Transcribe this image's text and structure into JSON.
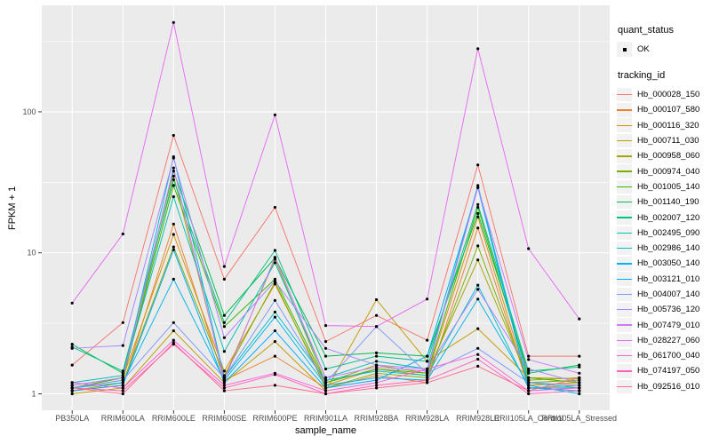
{
  "window": {
    "background": "#FFFFFF"
  },
  "legend": {
    "quant_status": {
      "title": "quant_status",
      "items": [
        {
          "label": "OK",
          "marker": "black-point"
        }
      ]
    },
    "tracking_id": {
      "title": "tracking_id"
    }
  },
  "chart_data": {
    "type": "line",
    "title": "",
    "xlabel": "sample_name",
    "ylabel": "FPKM + 1",
    "y_scale": "log10",
    "ylim": [
      1,
      450
    ],
    "grid": true,
    "legend_position": "right",
    "panel_background": "#EBEBEB",
    "gridline_color": "#FFFFFF",
    "axis_text_color": "#4D4D4D",
    "legend_key_background": "#F2F2F2",
    "marker": {
      "shape": "point",
      "color": "#000000"
    },
    "categories": [
      "PB350LA",
      "RRIM600LA",
      "RRIM600LE",
      "RRIM600SE",
      "RRIM600PE",
      "RRIM901LA",
      "RRIM928BA",
      "RRIM928LA",
      "RRIM928LE",
      "RRII105LA_Control",
      "RRII105LA_Stressed"
    ],
    "y_ticks": [
      {
        "label": "1",
        "value": 1
      },
      {
        "label": "10",
        "value": 10
      },
      {
        "label": "100",
        "value": 100
      }
    ],
    "y_minor_ticks": [
      3.1623,
      31.6228,
      316.228
    ],
    "series": [
      {
        "name": "Hb_000028_150",
        "color": "#F8766D",
        "values": [
          1.6,
          3.2,
          68,
          6.5,
          21,
          2.35,
          3.6,
          2.4,
          42,
          1.85,
          1.85
        ]
      },
      {
        "name": "Hb_000107_580",
        "color": "#EA8331",
        "values": [
          1.05,
          1.15,
          16,
          1.25,
          1.85,
          1.1,
          1.35,
          1.2,
          15,
          1.1,
          1.15
        ]
      },
      {
        "name": "Hb_000116_320",
        "color": "#D89000",
        "values": [
          1.1,
          1.3,
          13.5,
          1.45,
          6.0,
          1.15,
          1.5,
          1.35,
          18,
          1.15,
          1.2
        ]
      },
      {
        "name": "Hb_000711_030",
        "color": "#C09B00",
        "values": [
          1.0,
          1.1,
          2.8,
          1.2,
          2.35,
          1.05,
          4.65,
          1.7,
          2.9,
          1.3,
          1.28
        ]
      },
      {
        "name": "Hb_000958_060",
        "color": "#A3A500",
        "values": [
          1.1,
          1.25,
          35,
          1.3,
          9.0,
          1.2,
          1.6,
          1.4,
          8.9,
          1.25,
          1.3
        ]
      },
      {
        "name": "Hb_000974_040",
        "color": "#7CAE00",
        "values": [
          1.05,
          1.2,
          11,
          1.35,
          6.2,
          1.1,
          1.4,
          1.3,
          11.2,
          1.2,
          1.25
        ]
      },
      {
        "name": "Hb_001005_140",
        "color": "#39B600",
        "values": [
          1.1,
          1.3,
          30,
          3.0,
          6.5,
          1.2,
          1.5,
          1.4,
          21,
          1.3,
          1.2
        ]
      },
      {
        "name": "Hb_001140_190",
        "color": "#00BB4E",
        "values": [
          2.25,
          1.4,
          38,
          3.6,
          9.2,
          1.85,
          1.95,
          1.85,
          19,
          1.4,
          1.6
        ]
      },
      {
        "name": "Hb_002007_120",
        "color": "#00C087",
        "values": [
          2.15,
          1.45,
          33,
          3.2,
          10.4,
          1.5,
          1.85,
          1.7,
          22,
          1.45,
          1.55
        ]
      },
      {
        "name": "Hb_002495_090",
        "color": "#00C0B4",
        "values": [
          1.2,
          1.35,
          25,
          2.0,
          8.5,
          1.3,
          1.7,
          1.5,
          30,
          1.2,
          1.1
        ]
      },
      {
        "name": "Hb_002986_140",
        "color": "#00BDD2",
        "values": [
          1.15,
          1.3,
          48,
          1.3,
          3.8,
          1.25,
          1.45,
          1.35,
          5.9,
          1.1,
          1.05
        ]
      },
      {
        "name": "Hb_003050_140",
        "color": "#00B5EC",
        "values": [
          1.1,
          1.2,
          6.5,
          1.25,
          3.5,
          1.15,
          1.3,
          1.25,
          4.7,
          1.15,
          1.0
        ]
      },
      {
        "name": "Hb_003121_010",
        "color": "#00A9FF",
        "values": [
          1.05,
          1.15,
          10.5,
          1.2,
          2.8,
          1.1,
          1.25,
          1.85,
          29,
          1.1,
          1.1
        ]
      },
      {
        "name": "Hb_004007_140",
        "color": "#7F96FF",
        "values": [
          1.1,
          1.25,
          3.2,
          1.3,
          4.6,
          1.2,
          3.0,
          1.4,
          2.1,
          1.2,
          1.15
        ]
      },
      {
        "name": "Hb_005736_120",
        "color": "#A983FF",
        "values": [
          2.1,
          2.2,
          47,
          2.5,
          6.3,
          2.1,
          1.6,
          1.5,
          5.5,
          1.5,
          1.2
        ]
      },
      {
        "name": "Hb_007479_010",
        "color": "#CF78FF",
        "values": [
          1.15,
          1.3,
          40,
          1.25,
          9.3,
          1.3,
          1.55,
          1.45,
          29,
          1.75,
          1.4
        ]
      },
      {
        "name": "Hb_028227_060",
        "color": "#E76BF3",
        "values": [
          4.4,
          13.6,
          430,
          8.0,
          95,
          3.05,
          3.0,
          4.7,
          280,
          10.7,
          3.4
        ]
      },
      {
        "name": "Hb_061700_040",
        "color": "#FA62DB",
        "values": [
          1.2,
          1.1,
          2.4,
          1.15,
          1.4,
          1.05,
          1.2,
          1.5,
          1.9,
          1.05,
          1.1
        ]
      },
      {
        "name": "Hb_074197_050",
        "color": "#FF62BC",
        "values": [
          1.1,
          1.05,
          2.25,
          1.1,
          1.37,
          1.0,
          1.15,
          1.25,
          1.76,
          1.0,
          1.05
        ]
      },
      {
        "name": "Hb_092516_010",
        "color": "#FF6C91",
        "values": [
          1.1,
          1.0,
          2.3,
          1.05,
          1.15,
          1.0,
          1.1,
          1.2,
          1.57,
          1.05,
          1.3
        ]
      }
    ]
  }
}
